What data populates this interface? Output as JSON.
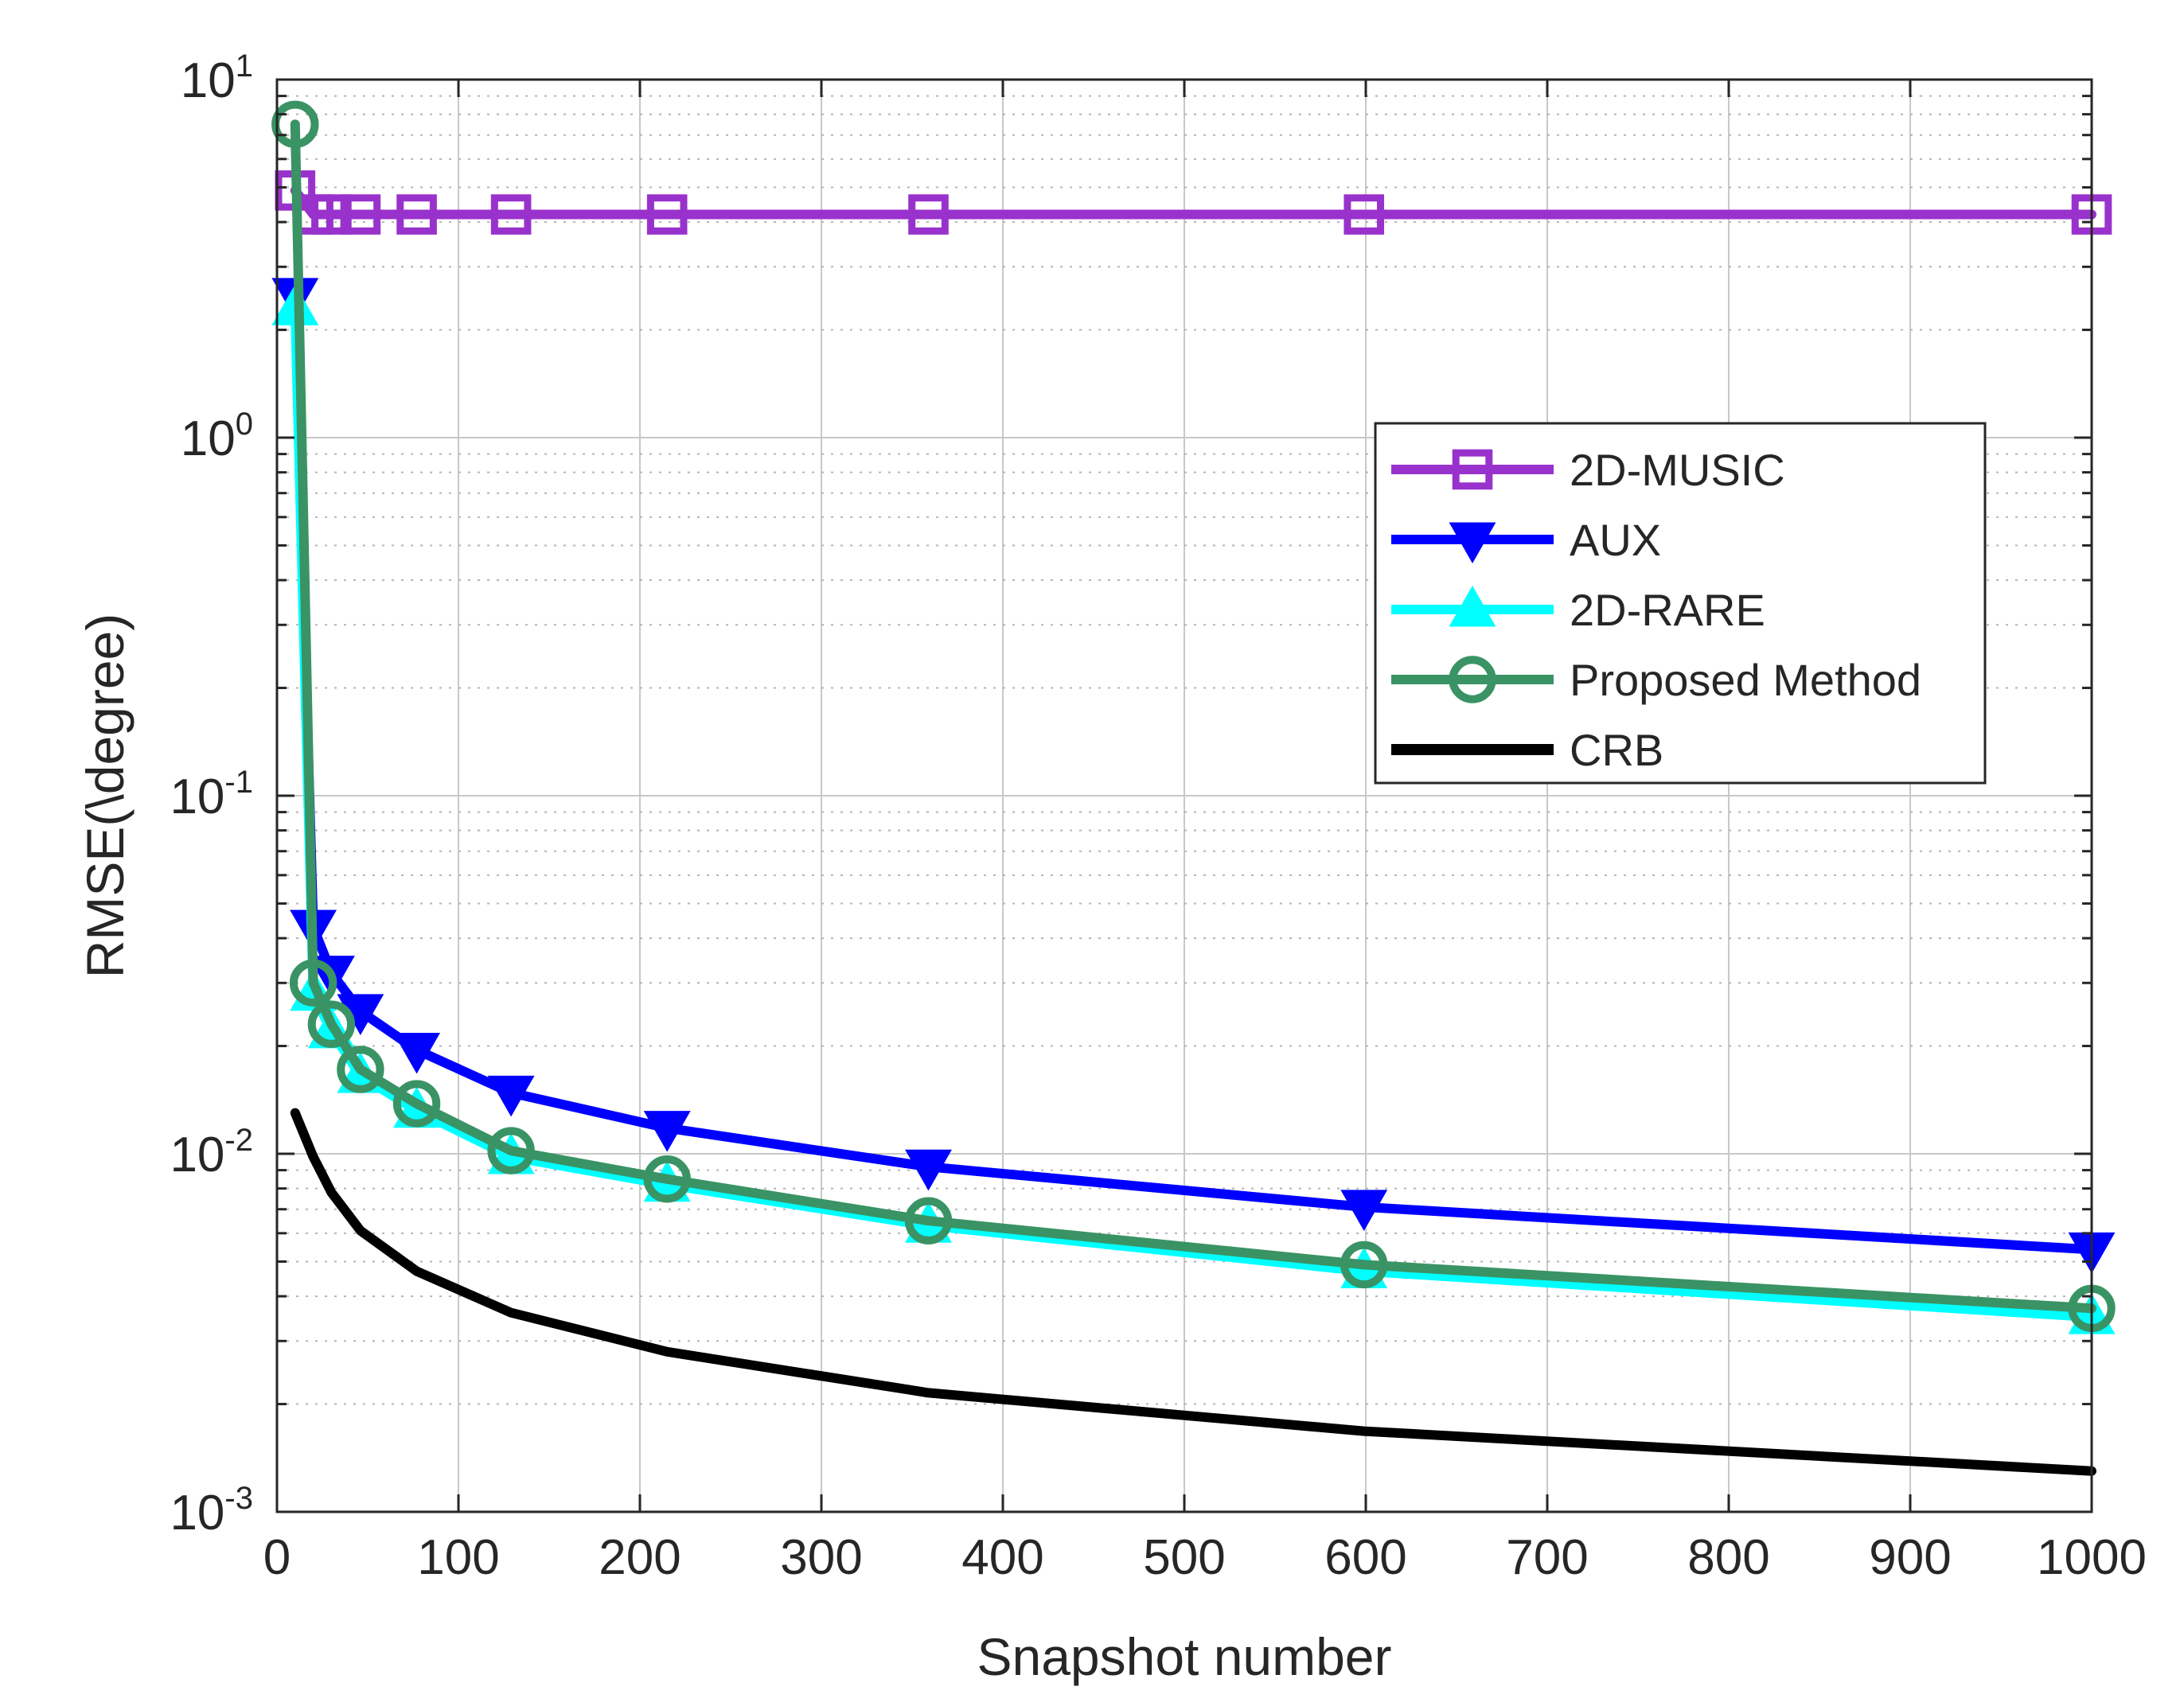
{
  "chart_data": {
    "type": "line",
    "title": "",
    "xlabel": "Snapshot number",
    "ylabel": "RMSE(\\degree)",
    "xscale": "linear",
    "yscale": "log",
    "xlim": [
      0,
      1000
    ],
    "ylim": [
      0.001,
      10
    ],
    "xticks": [
      0,
      100,
      200,
      300,
      400,
      500,
      600,
      700,
      800,
      900,
      1000
    ],
    "xtick_labels": [
      "0",
      "100",
      "200",
      "300",
      "400",
      "500",
      "600",
      "700",
      "800",
      "900",
      "1000"
    ],
    "ytick_labels": [
      {
        "base": "10",
        "exp": "-3",
        "value": 0.001
      },
      {
        "base": "10",
        "exp": "-2",
        "value": 0.01
      },
      {
        "base": "10",
        "exp": "-1",
        "value": 0.1
      },
      {
        "base": "10",
        "exp": "0",
        "value": 1
      },
      {
        "base": "10",
        "exp": "1",
        "value": 10
      }
    ],
    "grid": true,
    "legend_position": "upper-right",
    "series": [
      {
        "name": "2D-MUSIC",
        "color": "#9932CC",
        "marker": "square",
        "x": [
          10,
          20,
          30,
          46,
          77,
          129,
          215,
          359,
          599,
          1000
        ],
        "y": [
          4.9,
          4.2,
          4.2,
          4.2,
          4.2,
          4.2,
          4.2,
          4.2,
          4.2,
          4.2
        ]
      },
      {
        "name": "AUX",
        "color": "#0000FF",
        "marker": "triangle-down",
        "x": [
          10,
          20,
          30,
          46,
          77,
          129,
          215,
          359,
          599,
          1000
        ],
        "y": [
          2.5,
          0.043,
          0.032,
          0.025,
          0.0195,
          0.0148,
          0.0118,
          0.0092,
          0.0071,
          0.0054
        ]
      },
      {
        "name": "2D-RARE",
        "color": "#00FFFF",
        "marker": "triangle-up",
        "x": [
          10,
          20,
          30,
          46,
          77,
          129,
          215,
          359,
          599,
          1000
        ],
        "y": [
          2.3,
          0.028,
          0.022,
          0.0165,
          0.0132,
          0.0098,
          0.0082,
          0.0063,
          0.0047,
          0.0035
        ]
      },
      {
        "name": "Proposed Method",
        "color": "#3A9364",
        "marker": "circle",
        "x": [
          10,
          20,
          30,
          46,
          77,
          129,
          215,
          359,
          599,
          1000
        ],
        "y": [
          7.5,
          0.03,
          0.023,
          0.0172,
          0.0138,
          0.0102,
          0.0085,
          0.0065,
          0.0049,
          0.0037
        ]
      },
      {
        "name": "CRB",
        "color": "#000000",
        "marker": "none",
        "x": [
          10,
          20,
          30,
          46,
          77,
          129,
          215,
          359,
          599,
          1000
        ],
        "y": [
          0.013,
          0.0098,
          0.0078,
          0.0061,
          0.0047,
          0.0036,
          0.0028,
          0.00215,
          0.00168,
          0.0013
        ]
      }
    ]
  }
}
